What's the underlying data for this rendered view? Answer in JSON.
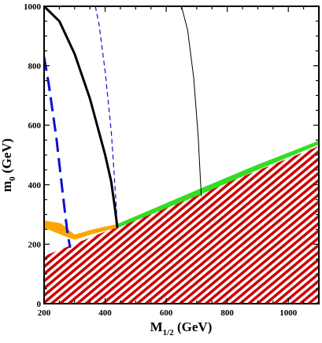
{
  "chart_data": {
    "type": "line",
    "xlabel": {
      "main": "M",
      "sub": "1/2",
      "unit": " (GeV)"
    },
    "ylabel": {
      "main": "m",
      "sub": "0",
      "unit": " (GeV)"
    },
    "xlim": [
      200,
      1100
    ],
    "ylim": [
      0,
      1000
    ],
    "x_ticks": [
      200,
      400,
      600,
      800,
      1000
    ],
    "y_ticks": [
      0,
      200,
      400,
      600,
      800,
      1000
    ],
    "grid": false,
    "legend": "none",
    "regions": [
      {
        "id": "excluded-hatched",
        "fill": "#cc0000",
        "points": [
          [
            200,
            160
          ],
          [
            1100,
            530
          ],
          [
            1100,
            0
          ],
          [
            200,
            0
          ]
        ]
      },
      {
        "id": "green-band",
        "fill": "#33dd22",
        "points": [
          [
            440,
            255
          ],
          [
            700,
            362
          ],
          [
            900,
            450
          ],
          [
            1100,
            535
          ],
          [
            1100,
            548
          ],
          [
            900,
            468
          ],
          [
            700,
            382
          ],
          [
            440,
            268
          ]
        ]
      },
      {
        "id": "orange-band",
        "fill": "#ffa500",
        "points": [
          [
            200,
            280
          ],
          [
            255,
            270
          ],
          [
            300,
            232
          ],
          [
            360,
            250
          ],
          [
            440,
            268
          ],
          [
            440,
            255
          ],
          [
            360,
            235
          ],
          [
            300,
            215
          ],
          [
            260,
            230
          ],
          [
            200,
            255
          ]
        ]
      }
    ],
    "series": [
      {
        "id": "thick-black",
        "color": "#000000",
        "width": 3,
        "dash": "",
        "x": [
          200,
          250,
          300,
          350,
          400,
          420,
          432,
          440
        ],
        "y": [
          1000,
          950,
          840,
          690,
          500,
          410,
          320,
          255
        ]
      },
      {
        "id": "thin-black",
        "color": "#000000",
        "width": 1,
        "dash": "",
        "x": [
          650,
          670,
          690,
          705,
          712,
          715
        ],
        "y": [
          1000,
          920,
          760,
          560,
          420,
          362
        ]
      },
      {
        "id": "thin-blue-dashed",
        "color": "#1010cc",
        "width": 1.2,
        "dash": "6,4",
        "x": [
          368,
          380,
          400,
          420,
          430,
          438
        ],
        "y": [
          1000,
          940,
          780,
          580,
          430,
          300
        ]
      },
      {
        "id": "thick-blue-dashed",
        "color": "#1010cc",
        "width": 3,
        "dash": "18,8",
        "x": [
          200,
          215,
          240,
          260,
          275,
          285
        ],
        "y": [
          830,
          740,
          560,
          380,
          250,
          188
        ]
      }
    ]
  }
}
